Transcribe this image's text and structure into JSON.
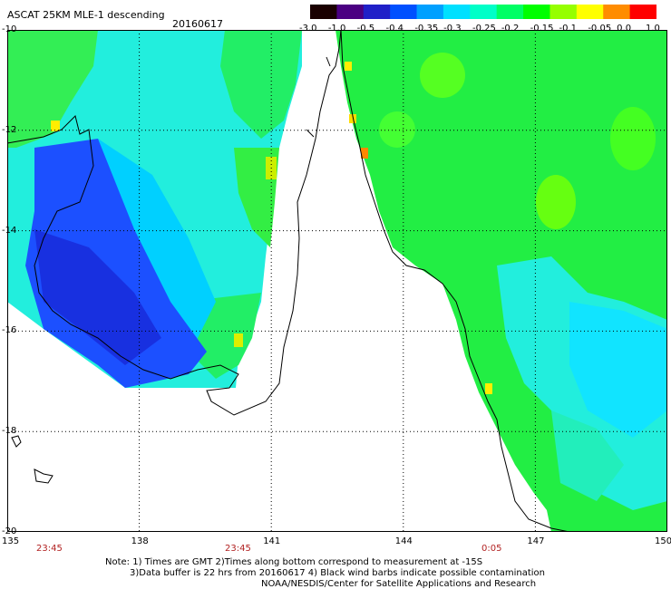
{
  "header": {
    "title": "ASCAT 25KM MLE-1 descending",
    "date": "20160617"
  },
  "colorbar": {
    "labels": [
      "-3.0",
      "-1.0",
      "-0.5",
      "-0.4",
      "-0.35",
      "-0.3",
      "-0.25",
      "-0.2",
      "-0.15",
      "-0.1",
      "-0.05",
      "0.0",
      "1.0"
    ],
    "colors": [
      "#1a0000",
      "#4b0082",
      "#2020c8",
      "#0050ff",
      "#00a0ff",
      "#00e0ff",
      "#00ffc8",
      "#00ff64",
      "#00ff00",
      "#96ff00",
      "#ffff00",
      "#ff8c00",
      "#ff0000"
    ]
  },
  "axes": {
    "lat_labels": [
      "-10",
      "-12",
      "-14",
      "-16",
      "-18",
      "-20"
    ],
    "lon_labels": [
      "135",
      "138",
      "141",
      "144",
      "147",
      "150"
    ],
    "times": [
      "23:45",
      "23:45",
      "0:05"
    ]
  },
  "notes": {
    "line1": "Note: 1) Times are GMT 2)Times along bottom correspond to measurement at -15S",
    "line2": "3)Data buffer is 22 hrs from 20160617 4) Black wind barbs indicate possible contamination",
    "line3": "NOAA/NESDIS/Center for Satellite Applications and Research"
  }
}
